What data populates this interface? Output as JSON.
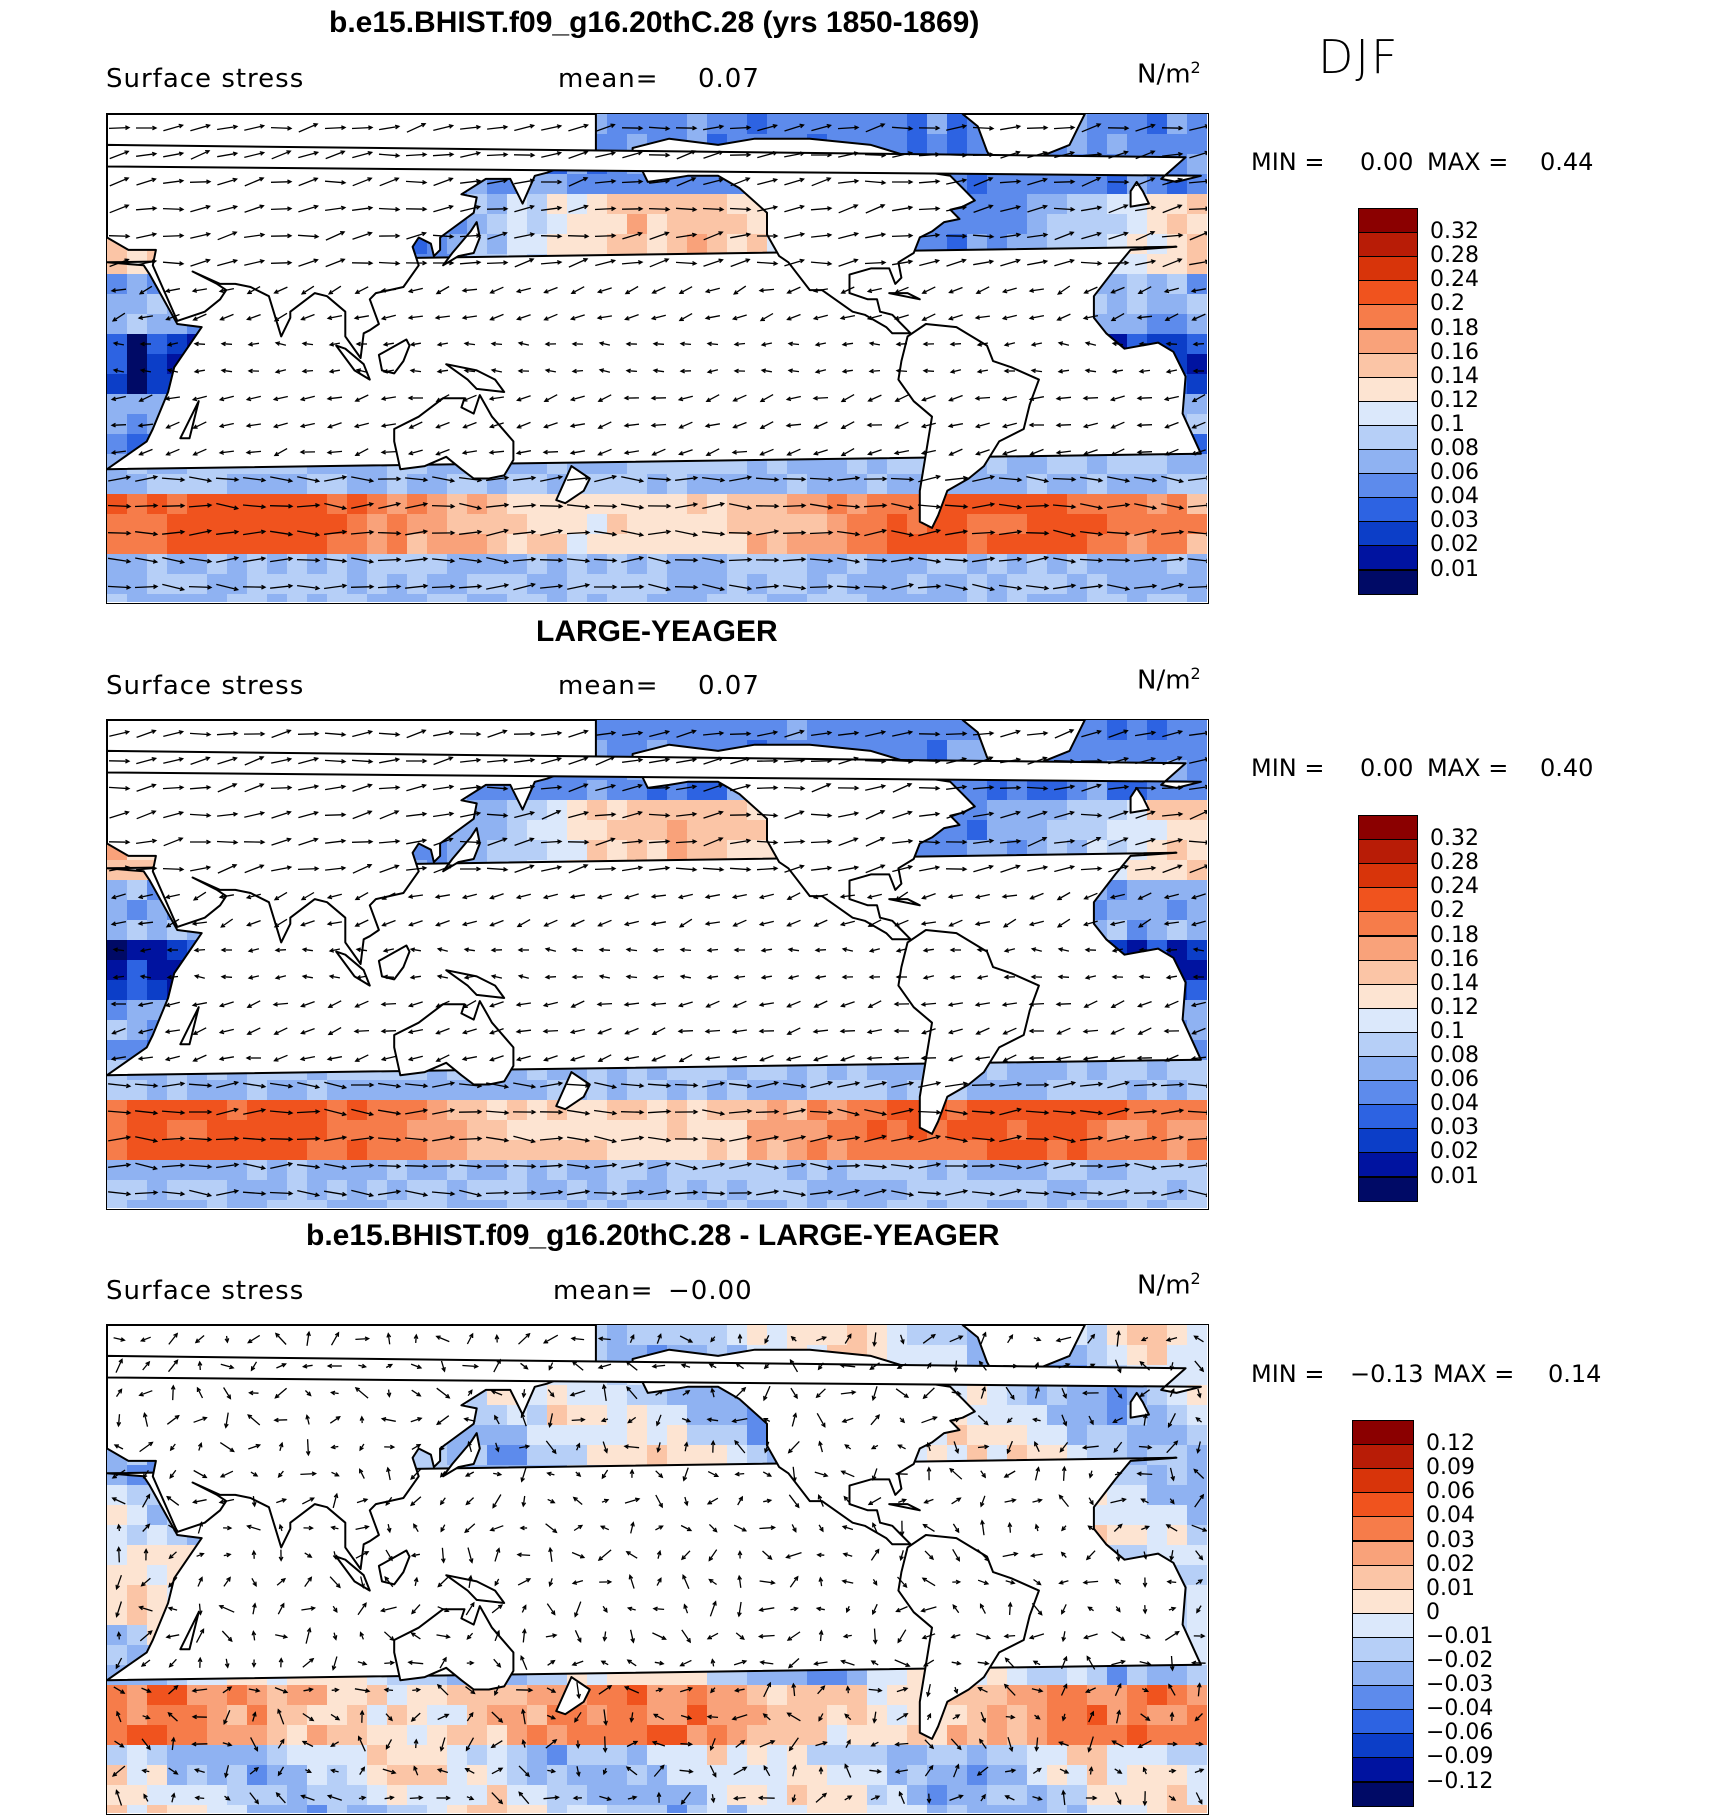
{
  "season": "DJF",
  "palette_pos": [
    "#000a66",
    "#001fb0",
    "#0a3fd6",
    "#1f5be6",
    "#4c7ff0",
    "#7aa3f5",
    "#a9c6f9",
    "#d5e5fc",
    "#fff1dc",
    "#fbcfb1",
    "#f6a484",
    "#f07a52",
    "#e6501f",
    "#c7250c",
    "#9c0d03"
  ],
  "panels": [
    {
      "title": "b.e15.BHIST.f09_g16.20thC.28 (yrs 1850-1869)",
      "variable": "Surface stress",
      "mean_label": "mean=",
      "mean_value": "0.07",
      "units": "N/m",
      "units_exp": "2",
      "min_label": "MIN =",
      "min_value": "0.00",
      "max_label": "MAX =",
      "max_value": "0.44",
      "colorbar_labels": [
        "0.32",
        "0.28",
        "0.24",
        "0.2",
        "0.18",
        "0.16",
        "0.14",
        "0.12",
        "0.1",
        "0.08",
        "0.06",
        "0.04",
        "0.03",
        "0.02",
        "0.01"
      ],
      "colors": [
        "#8b0000",
        "#b81c06",
        "#d8340a",
        "#f0531e",
        "#f67c4a",
        "#f9a27a",
        "#fbc5a6",
        "#fde4d2",
        "#dbe8fb",
        "#b6cff7",
        "#8fb2f2",
        "#5d8bec",
        "#2d63e2",
        "#0c3ec8",
        "#0013a0",
        "#000a66"
      ]
    },
    {
      "title": "LARGE-YEAGER",
      "variable": "Surface stress",
      "mean_label": "mean=",
      "mean_value": "0.07",
      "units": "N/m",
      "units_exp": "2",
      "min_label": "MIN =",
      "min_value": "0.00",
      "max_label": "MAX =",
      "max_value": "0.40",
      "colorbar_labels": [
        "0.32",
        "0.28",
        "0.24",
        "0.2",
        "0.18",
        "0.16",
        "0.14",
        "0.12",
        "0.1",
        "0.08",
        "0.06",
        "0.04",
        "0.03",
        "0.02",
        "0.01"
      ],
      "colors": [
        "#8b0000",
        "#b81c06",
        "#d8340a",
        "#f0531e",
        "#f67c4a",
        "#f9a27a",
        "#fbc5a6",
        "#fde4d2",
        "#dbe8fb",
        "#b6cff7",
        "#8fb2f2",
        "#5d8bec",
        "#2d63e2",
        "#0c3ec8",
        "#0013a0",
        "#000a66"
      ]
    },
    {
      "title": "b.e15.BHIST.f09_g16.20thC.28 - LARGE-YEAGER",
      "variable": "Surface stress",
      "mean_label": "mean=",
      "mean_value": "−0.00",
      "units": "N/m",
      "units_exp": "2",
      "min_label": "MIN =",
      "min_value": "−0.13",
      "max_label": "MAX =",
      "max_value": "0.14",
      "colorbar_labels": [
        "0.12",
        "0.09",
        "0.06",
        "0.04",
        "0.03",
        "0.02",
        "0.01",
        "0",
        "−0.01",
        "−0.02",
        "−0.03",
        "−0.04",
        "−0.06",
        "−0.09",
        "−0.12"
      ],
      "colors": [
        "#8b0000",
        "#b81c06",
        "#d8340a",
        "#f0531e",
        "#f67c4a",
        "#f9a27a",
        "#fbc5a6",
        "#fde4d2",
        "#dbe8fb",
        "#b6cff7",
        "#8fb2f2",
        "#5d8bec",
        "#2d63e2",
        "#0c3ec8",
        "#0013a0",
        "#000a66"
      ]
    }
  ]
}
